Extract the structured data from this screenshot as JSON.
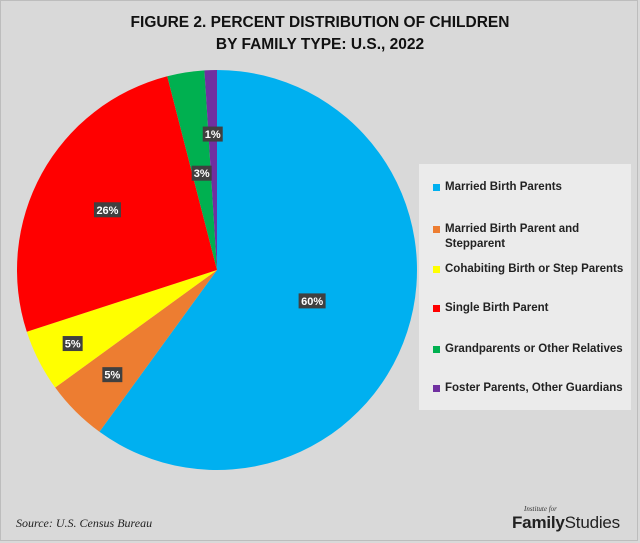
{
  "chart_data": {
    "type": "pie",
    "title_line1": "FIGURE 2. PERCENT DISTRIBUTION OF CHILDREN",
    "title_line2": "BY FAMILY TYPE: U.S., 2022",
    "slices": [
      {
        "name": "Married Birth Parents",
        "value": 60,
        "label": "60%",
        "color": "#00b0f0"
      },
      {
        "name": "Married Birth Parent and Stepparent",
        "value": 5,
        "label": "5%",
        "color": "#ed7d31"
      },
      {
        "name": "Cohabiting Birth or Step Parents",
        "value": 5,
        "label": "5%",
        "color": "#ffff00"
      },
      {
        "name": "Single Birth Parent",
        "value": 26,
        "label": "26%",
        "color": "#ff0000"
      },
      {
        "name": "Grandparents or Other Relatives",
        "value": 3,
        "label": "3%",
        "color": "#00b050"
      },
      {
        "name": "Foster Parents, Other Guardians",
        "value": 1,
        "label": "1%",
        "color": "#7030a0"
      }
    ],
    "legend_position": "right"
  },
  "legend": {
    "items": [
      {
        "lines": [
          "Married Birth Parents"
        ],
        "color": "#00b0f0"
      },
      {
        "lines": [
          "Married Birth Parent and",
          "Stepparent"
        ],
        "color": "#ed7d31"
      },
      {
        "lines": [
          "Cohabiting Birth or Step Parents"
        ],
        "color": "#ffff00"
      },
      {
        "lines": [
          "Single Birth Parent"
        ],
        "color": "#ff0000"
      },
      {
        "lines": [
          "Grandparents or Other Relatives"
        ],
        "color": "#00b050"
      },
      {
        "lines": [
          "Foster Parents, Other Guardians"
        ],
        "color": "#7030a0"
      }
    ]
  },
  "footer": {
    "source": "Source: U.S. Census Bureau",
    "logo_small": "Institute for",
    "logo_bold": "Family",
    "logo_regular": "Studies"
  }
}
